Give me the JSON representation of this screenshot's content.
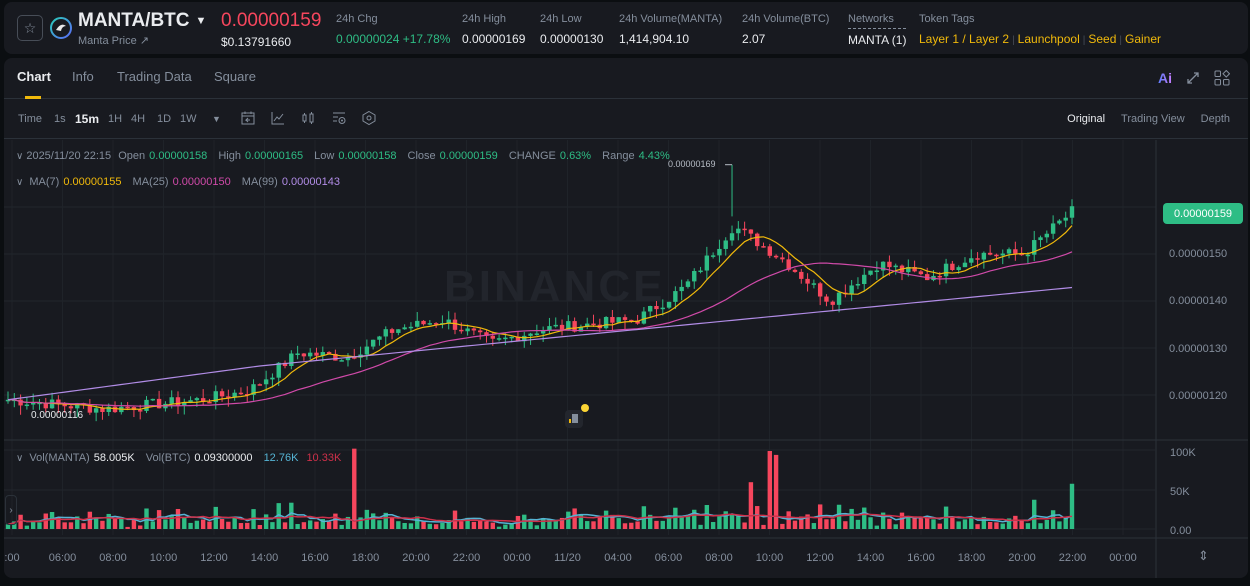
{
  "header": {
    "pair": "MANTA/BTC",
    "subtitle": "Manta Price ↗",
    "last_price": "0.00000159",
    "usd_price": "$0.13791660",
    "stats": [
      {
        "label": "24h Chg",
        "value": "0.00000024 +17.78%",
        "color": "green"
      },
      {
        "label": "24h High",
        "value": "0.00000169"
      },
      {
        "label": "24h Low",
        "value": "0.00000130"
      },
      {
        "label": "24h Volume(MANTA)",
        "value": "1,414,904.10"
      },
      {
        "label": "24h Volume(BTC)",
        "value": "2.07"
      },
      {
        "label": "Networks",
        "value": "MANTA (1)"
      },
      {
        "label": "Token Tags",
        "value": ""
      }
    ],
    "tags": [
      "Layer 1 / Layer 2",
      "Launchpool",
      "Seed",
      "Gainer"
    ]
  },
  "tabs": [
    "Chart",
    "Info",
    "Trading Data",
    "Square"
  ],
  "active_tab": "Chart",
  "tab_icons": {
    "ai": "Ai"
  },
  "toolbar": {
    "time_label": "Time",
    "intervals": [
      "1s",
      "15m",
      "1H",
      "4H",
      "1D",
      "1W"
    ],
    "active_interval": "15m",
    "views": [
      "Original",
      "Trading View",
      "Depth"
    ],
    "active_view": "Original"
  },
  "ohlc_legend": {
    "datetime": "2025/11/20 22:15",
    "open_label": "Open",
    "open": "0.00000158",
    "high_label": "High",
    "high": "0.00000165",
    "low_label": "Low",
    "low": "0.00000158",
    "close_label": "Close",
    "close": "0.00000159",
    "change_label": "CHANGE",
    "change": "0.63%",
    "range_label": "Range",
    "range": "4.43%"
  },
  "ma_legend": {
    "ma7_label": "MA(7)",
    "ma7": "0.00000155",
    "ma25_label": "MA(25)",
    "ma25": "0.00000150",
    "ma99_label": "MA(99)",
    "ma99": "0.00000143"
  },
  "vol_legend": {
    "vol_label": "Vol(MANTA)",
    "vol": "58.005K",
    "volbtc_label": "Vol(BTC)",
    "volbtc": "0.09300000",
    "ma5": "12.76K",
    "ma10": "10.33K"
  },
  "chart_labels": {
    "current_price_tag": "0.00000159",
    "high_marker": "0.00000169",
    "low_marker": "0.00000116",
    "watermark": "BINANCE"
  },
  "colors": {
    "up": "#2ebd85",
    "down": "#f6465d",
    "ma7": "#f0b90b",
    "ma25": "#d04aa9",
    "ma99": "#b18ce6",
    "vol_ma5": "#55b4d4",
    "vol_ma10": "#cf304a"
  },
  "chart_data": {
    "type": "candlestick",
    "title": "MANTA/BTC 15m",
    "price_axis": {
      "ticks": [
        "0.00000150",
        "0.00000140",
        "0.00000130",
        "0.00000120"
      ],
      "tick_values": [
        1.5,
        1.4,
        1.3,
        1.2
      ],
      "unit": "1e-6 BTC"
    },
    "volume_axis": {
      "ticks": [
        "100K",
        "50K",
        "0.00"
      ]
    },
    "x_ticks": [
      ":00",
      "06:00",
      "08:00",
      "10:00",
      "12:00",
      "14:00",
      "16:00",
      "18:00",
      "20:00",
      "22:00",
      "00:00",
      "11/20",
      "04:00",
      "06:00",
      "08:00",
      "10:00",
      "12:00",
      "14:00",
      "16:00",
      "18:00",
      "20:00",
      "22:00",
      "00:00"
    ],
    "price_series_approx": [
      {
        "t": "04:00",
        "close": 1.19
      },
      {
        "t": "06:00",
        "close": 1.18
      },
      {
        "t": "08:00",
        "close": 1.17
      },
      {
        "t": "10:00",
        "close": 1.18
      },
      {
        "t": "12:00",
        "close": 1.19
      },
      {
        "t": "14:00",
        "close": 1.21
      },
      {
        "t": "15:00",
        "close": 1.29
      },
      {
        "t": "18:00",
        "close": 1.28
      },
      {
        "t": "20:00",
        "close": 1.34
      },
      {
        "t": "22:00",
        "close": 1.36
      },
      {
        "t": "00:00",
        "close": 1.31
      },
      {
        "t": "11/20",
        "close": 1.34
      },
      {
        "t": "04:00",
        "close": 1.35
      },
      {
        "t": "06:00",
        "close": 1.36
      },
      {
        "t": "07:30",
        "close": 1.43
      },
      {
        "t": "08:30",
        "close": 1.56
      },
      {
        "t": "10:00",
        "close": 1.49
      },
      {
        "t": "12:00",
        "close": 1.4
      },
      {
        "t": "14:00",
        "close": 1.48
      },
      {
        "t": "16:00",
        "close": 1.45
      },
      {
        "t": "18:00",
        "close": 1.5
      },
      {
        "t": "20:00",
        "close": 1.5
      },
      {
        "t": "22:15",
        "close": 1.59
      }
    ],
    "high_marker": 1.69,
    "low_marker": 1.16,
    "moving_averages": [
      {
        "name": "MA(7)",
        "last": 1.55
      },
      {
        "name": "MA(25)",
        "last": 1.5
      },
      {
        "name": "MA(99)",
        "last": 1.43
      }
    ],
    "volume_peaks_k": [
      {
        "t": "19:00",
        "v": 103
      },
      {
        "t": "08:30",
        "v": 100
      },
      {
        "t": "22:15",
        "v": 58
      }
    ]
  }
}
